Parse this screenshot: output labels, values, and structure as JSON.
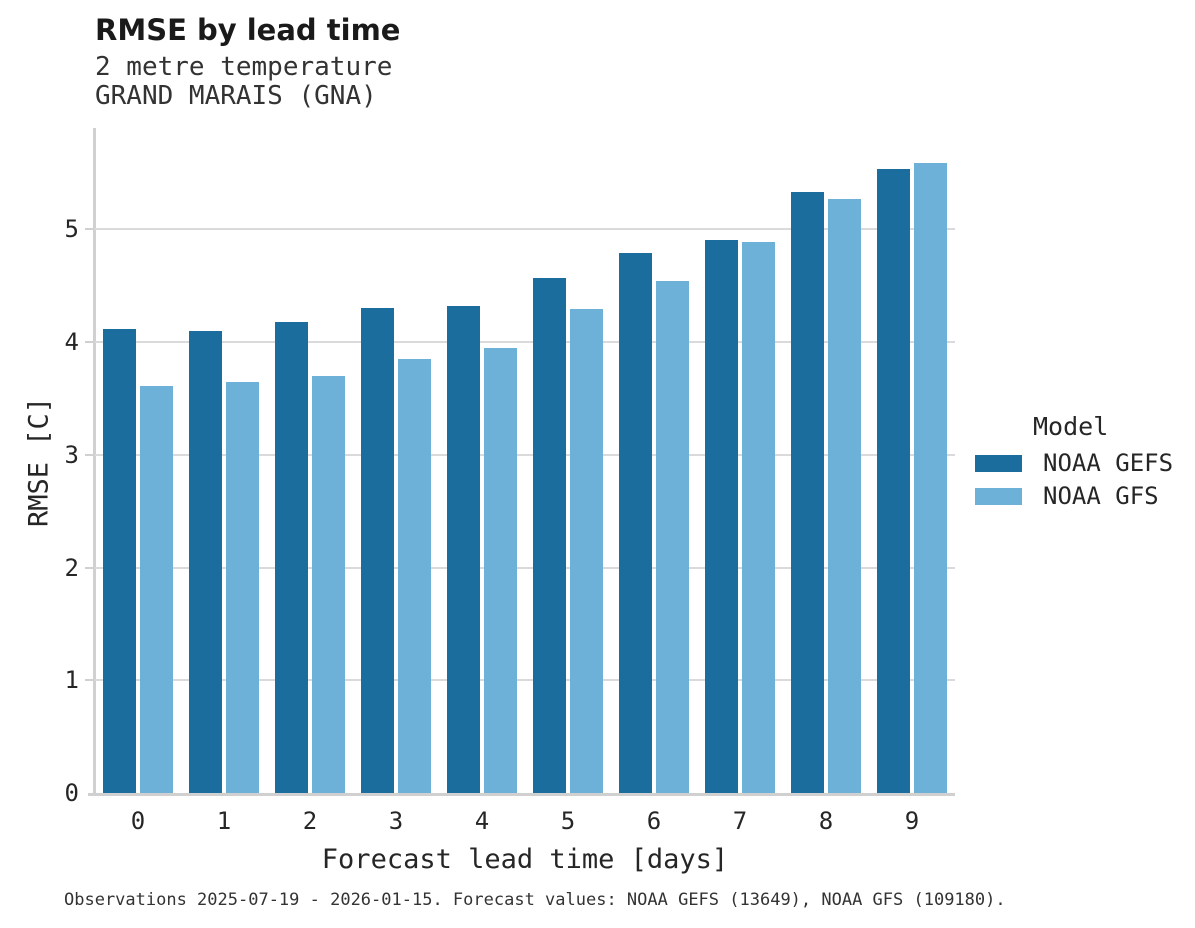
{
  "header": {
    "title": "RMSE by lead time",
    "subtitle_line1": "2 metre temperature",
    "subtitle_line2": "GRAND MARAIS (GNA)"
  },
  "legend": {
    "title": "Model",
    "items": [
      {
        "label": "NOAA GEFS",
        "color": "#1b6d9e"
      },
      {
        "label": "NOAA GFS",
        "color": "#6db1d9"
      }
    ]
  },
  "footer": {
    "caption": "Observations 2025-07-19 - 2026-01-15. Forecast values: NOAA GEFS (13649), NOAA GFS (109180)."
  },
  "chart_data": {
    "type": "bar",
    "title": "RMSE by lead time",
    "xlabel": "Forecast lead time [days]",
    "ylabel": "RMSE [C]",
    "categories": [
      "0",
      "1",
      "2",
      "3",
      "4",
      "5",
      "6",
      "7",
      "8",
      "9"
    ],
    "series": [
      {
        "name": "NOAA GEFS",
        "color": "#1b6d9e",
        "values": [
          4.12,
          4.1,
          4.18,
          4.3,
          4.32,
          4.57,
          4.79,
          4.91,
          5.33,
          5.54
        ]
      },
      {
        "name": "NOAA GFS",
        "color": "#6db1d9",
        "values": [
          3.61,
          3.65,
          3.7,
          3.85,
          3.95,
          4.29,
          4.54,
          4.89,
          5.27,
          5.59
        ]
      }
    ],
    "yticks": [
      0,
      1,
      2,
      3,
      4,
      5
    ],
    "ylim": [
      0,
      5.9
    ],
    "grid": true,
    "legend_position": "right",
    "colors": {
      "grid": "#dadada",
      "axis": "#d0d0d0",
      "text": "#262626"
    }
  }
}
